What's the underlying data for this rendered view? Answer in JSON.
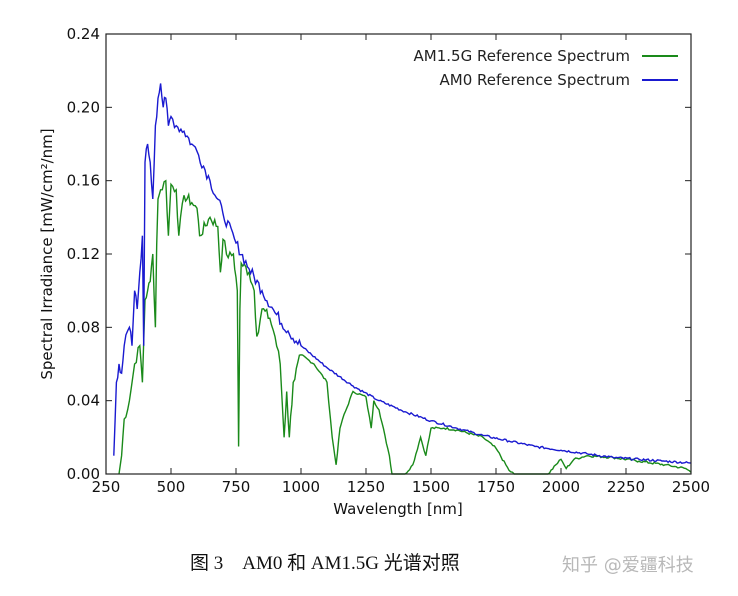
{
  "chart_data": {
    "type": "line",
    "title": "",
    "xlabel": "Wavelength [nm]",
    "ylabel": "Spectral Irradiance [mW/cm²/nm]",
    "xlim": [
      250,
      2500
    ],
    "ylim": [
      0,
      0.24
    ],
    "xticks": [
      "250",
      "500",
      "750",
      "1000",
      "1250",
      "1500",
      "1750",
      "2000",
      "2250",
      "2500"
    ],
    "yticks": [
      "0.00",
      "0.04",
      "0.08",
      "0.12",
      "0.16",
      "0.20",
      "0.24"
    ],
    "legend_position": "top-right",
    "grid": false,
    "series": [
      {
        "name": "AM1.5G Reference Spectrum",
        "color": "#1a8a1a",
        "points": [
          [
            300,
            0
          ],
          [
            310,
            0.01
          ],
          [
            320,
            0.03
          ],
          [
            340,
            0.04
          ],
          [
            360,
            0.06
          ],
          [
            380,
            0.07
          ],
          [
            390,
            0.05
          ],
          [
            400,
            0.095
          ],
          [
            410,
            0.1
          ],
          [
            420,
            0.105
          ],
          [
            430,
            0.12
          ],
          [
            440,
            0.08
          ],
          [
            445,
            0.125
          ],
          [
            450,
            0.15
          ],
          [
            460,
            0.155
          ],
          [
            480,
            0.16
          ],
          [
            490,
            0.13
          ],
          [
            500,
            0.158
          ],
          [
            520,
            0.155
          ],
          [
            530,
            0.13
          ],
          [
            550,
            0.152
          ],
          [
            580,
            0.148
          ],
          [
            600,
            0.145
          ],
          [
            610,
            0.13
          ],
          [
            650,
            0.14
          ],
          [
            680,
            0.135
          ],
          [
            690,
            0.11
          ],
          [
            700,
            0.128
          ],
          [
            720,
            0.118
          ],
          [
            740,
            0.12
          ],
          [
            755,
            0.1
          ],
          [
            760,
            0.015
          ],
          [
            765,
            0.09
          ],
          [
            770,
            0.115
          ],
          [
            800,
            0.11
          ],
          [
            820,
            0.1
          ],
          [
            830,
            0.075
          ],
          [
            850,
            0.09
          ],
          [
            880,
            0.085
          ],
          [
            900,
            0.075
          ],
          [
            920,
            0.06
          ],
          [
            935,
            0.02
          ],
          [
            945,
            0.045
          ],
          [
            955,
            0.02
          ],
          [
            970,
            0.05
          ],
          [
            1000,
            0.065
          ],
          [
            1050,
            0.06
          ],
          [
            1100,
            0.05
          ],
          [
            1120,
            0.02
          ],
          [
            1135,
            0.005
          ],
          [
            1150,
            0.025
          ],
          [
            1160,
            0.03
          ],
          [
            1200,
            0.045
          ],
          [
            1250,
            0.042
          ],
          [
            1270,
            0.025
          ],
          [
            1280,
            0.04
          ],
          [
            1300,
            0.035
          ],
          [
            1340,
            0.01
          ],
          [
            1350,
            0
          ],
          [
            1400,
            0
          ],
          [
            1430,
            0.005
          ],
          [
            1460,
            0.02
          ],
          [
            1480,
            0.01
          ],
          [
            1500,
            0.025
          ],
          [
            1550,
            0.025
          ],
          [
            1600,
            0.024
          ],
          [
            1700,
            0.02
          ],
          [
            1750,
            0.014
          ],
          [
            1800,
            0.002
          ],
          [
            1820,
            0
          ],
          [
            1950,
            0
          ],
          [
            1980,
            0.005
          ],
          [
            2000,
            0.008
          ],
          [
            2020,
            0.003
          ],
          [
            2050,
            0.008
          ],
          [
            2100,
            0.01
          ],
          [
            2200,
            0.009
          ],
          [
            2300,
            0.007
          ],
          [
            2400,
            0.005
          ],
          [
            2480,
            0.003
          ],
          [
            2500,
            0.001
          ]
        ]
      },
      {
        "name": "AM0 Reference Spectrum",
        "color": "#1a1ad0",
        "points": [
          [
            280,
            0.01
          ],
          [
            290,
            0.05
          ],
          [
            300,
            0.06
          ],
          [
            310,
            0.055
          ],
          [
            320,
            0.07
          ],
          [
            340,
            0.08
          ],
          [
            350,
            0.07
          ],
          [
            360,
            0.1
          ],
          [
            370,
            0.09
          ],
          [
            380,
            0.11
          ],
          [
            390,
            0.13
          ],
          [
            395,
            0.07
          ],
          [
            400,
            0.17
          ],
          [
            410,
            0.18
          ],
          [
            420,
            0.17
          ],
          [
            430,
            0.15
          ],
          [
            440,
            0.19
          ],
          [
            450,
            0.205
          ],
          [
            460,
            0.213
          ],
          [
            470,
            0.2
          ],
          [
            480,
            0.205
          ],
          [
            490,
            0.19
          ],
          [
            500,
            0.195
          ],
          [
            520,
            0.19
          ],
          [
            550,
            0.187
          ],
          [
            580,
            0.18
          ],
          [
            600,
            0.176
          ],
          [
            650,
            0.16
          ],
          [
            700,
            0.142
          ],
          [
            750,
            0.126
          ],
          [
            800,
            0.112
          ],
          [
            850,
            0.1
          ],
          [
            900,
            0.088
          ],
          [
            950,
            0.078
          ],
          [
            1000,
            0.07
          ],
          [
            1100,
            0.058
          ],
          [
            1200,
            0.048
          ],
          [
            1300,
            0.04
          ],
          [
            1400,
            0.034
          ],
          [
            1500,
            0.029
          ],
          [
            1600,
            0.025
          ],
          [
            1700,
            0.021
          ],
          [
            1800,
            0.018
          ],
          [
            1900,
            0.015
          ],
          [
            2000,
            0.013
          ],
          [
            2100,
            0.011
          ],
          [
            2200,
            0.009
          ],
          [
            2300,
            0.008
          ],
          [
            2400,
            0.007
          ],
          [
            2500,
            0.006
          ]
        ]
      }
    ]
  },
  "caption": "图 3　AM0 和 AM1.5G 光谱对照",
  "watermark": "知乎 @爱疆科技"
}
